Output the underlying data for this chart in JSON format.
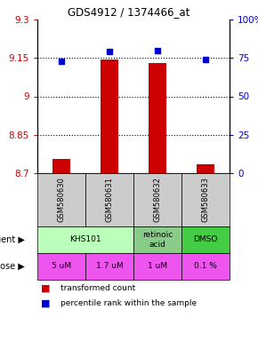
{
  "title": "GDS4912 / 1374466_at",
  "samples": [
    "GSM580630",
    "GSM580631",
    "GSM580632",
    "GSM580633"
  ],
  "bar_values": [
    8.755,
    9.143,
    9.13,
    8.735
  ],
  "percentile_values": [
    73,
    79,
    80,
    74
  ],
  "ylim_left": [
    8.7,
    9.3
  ],
  "ylim_right": [
    0,
    100
  ],
  "yticks_left": [
    8.7,
    8.85,
    9.0,
    9.15,
    9.3
  ],
  "yticks_right": [
    0,
    25,
    50,
    75,
    100
  ],
  "ytick_labels_left": [
    "8.7",
    "8.85",
    "9",
    "9.15",
    "9.3"
  ],
  "ytick_labels_right": [
    "0",
    "25",
    "50",
    "75",
    "100%"
  ],
  "bar_color": "#cc0000",
  "dot_color": "#0000cc",
  "dose_labels": [
    "5 uM",
    "1.7 uM",
    "1 uM",
    "0.1 %"
  ],
  "dose_color": "#ee55ee",
  "sample_bg_color": "#cccccc",
  "dotted_lines": [
    9.15,
    9.0,
    8.85
  ],
  "legend_bar_label": "transformed count",
  "legend_dot_label": "percentile rank within the sample",
  "agent_spans": [
    {
      "cols": [
        0,
        1
      ],
      "label": "KHS101",
      "color": "#bbffbb"
    },
    {
      "cols": [
        2,
        2
      ],
      "label": "retinoic\nacid",
      "color": "#88cc88"
    },
    {
      "cols": [
        3,
        3
      ],
      "label": "DMSO",
      "color": "#44cc44"
    }
  ]
}
